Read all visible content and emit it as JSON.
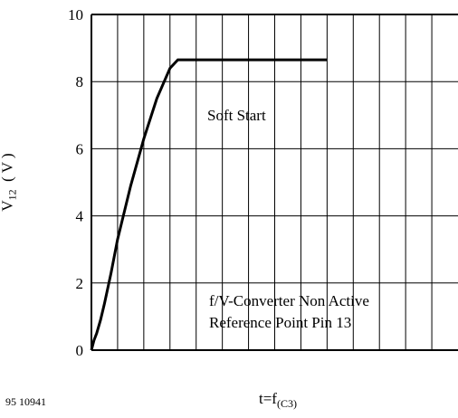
{
  "chart_data": {
    "type": "line",
    "ylabel_main": "V",
    "ylabel_sub": "12",
    "ylabel_unit": "( V )",
    "xlabel_main": "t=f",
    "xlabel_sub": "(C3)",
    "ylim": [
      0,
      10
    ],
    "yticks": [
      "0",
      "2",
      "4",
      "6",
      "8",
      "10"
    ],
    "x_ticks_labeled": false,
    "grid": true,
    "series": [
      {
        "x": [
          0,
          0.1,
          0.2,
          0.35,
          0.5,
          0.75,
          1.0,
          1.5,
          2.0,
          2.5,
          3.0,
          3.3,
          3.5,
          3.55,
          4,
          5,
          6,
          7,
          8,
          9
        ],
        "y": [
          0,
          0.3,
          0.5,
          0.9,
          1.4,
          2.3,
          3.3,
          4.9,
          6.3,
          7.5,
          8.4,
          8.65,
          8.65,
          8.65,
          8.65,
          8.65,
          8.65,
          8.65,
          8.65,
          8.65
        ]
      }
    ],
    "annotations": [
      "Soft Start",
      "f/V-Converter Non Active",
      "Reference Point Pin 13"
    ]
  },
  "figure_code": "95 10941"
}
